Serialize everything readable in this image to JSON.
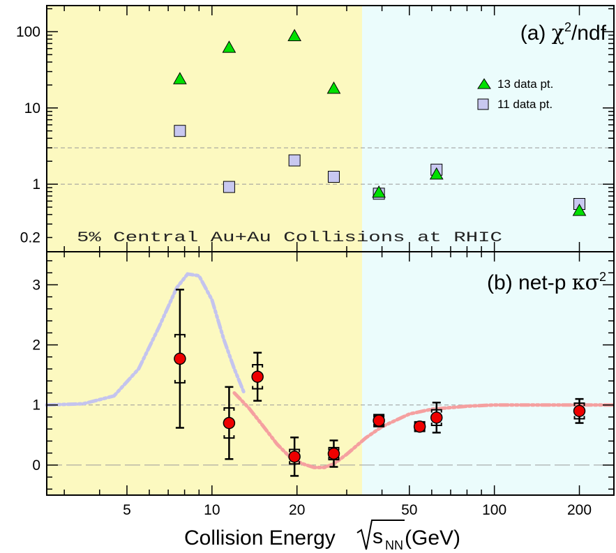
{
  "colors": {
    "low_energy_band": "#fcf9c0",
    "high_energy_band": "#ebfcfc",
    "triangle": "#00e000",
    "square": "#c8c8f0",
    "circle": "#ee0000",
    "peak_curve": "#c4c4ee",
    "dip_curve": "#f5a0a0",
    "reference_line": "#999999"
  },
  "chart_data": [
    {
      "panel": "a",
      "type": "scatter",
      "title_prefix": "(a) ",
      "title_chi": "χ",
      "title_sup": "2",
      "title_rest": "/ndf",
      "annotation": "5% Central Au+Au Collisions at RHIC",
      "yscale": "log",
      "ylim": [
        0.13,
        220
      ],
      "yticks": [
        0.2,
        1,
        10,
        100
      ],
      "ytick_labels": [
        "0.2",
        "1",
        "10",
        "100"
      ],
      "reference_lines_y": [
        1,
        3
      ],
      "legend_position": "top-right",
      "series": [
        {
          "name": "13 data pt.",
          "marker": "triangle",
          "x": [
            7.7,
            11.5,
            19.6,
            27,
            39,
            62.4,
            200
          ],
          "y": [
            24,
            62,
            88,
            18,
            0.78,
            1.35,
            0.45
          ]
        },
        {
          "name": "11 data pt.",
          "marker": "square",
          "x": [
            7.7,
            11.5,
            19.6,
            27,
            39,
            62.4,
            200
          ],
          "y": [
            5,
            0.92,
            2.05,
            1.25,
            0.75,
            1.55,
            0.55
          ]
        }
      ]
    },
    {
      "panel": "b",
      "type": "scatter",
      "title_prefix": "(b) net-p ",
      "title_kappa": "κσ",
      "title_sup": "2",
      "ylim": [
        -0.5,
        3.55
      ],
      "yticks": [
        0,
        1,
        2,
        3
      ],
      "ytick_labels": [
        "0",
        "1",
        "2",
        "3"
      ],
      "reference_lines_y": [
        0,
        1
      ],
      "series": [
        {
          "marker": "circle",
          "x": [
            7.7,
            11.5,
            14.5,
            19.6,
            27,
            39,
            54.4,
            62.4,
            200
          ],
          "y": [
            1.77,
            0.7,
            1.47,
            0.14,
            0.19,
            0.74,
            0.64,
            0.79,
            0.9
          ],
          "stat_err": [
            1.15,
            0.6,
            0.4,
            0.32,
            0.22,
            0.09,
            0.05,
            0.25,
            0.2
          ],
          "sys_err": [
            0.4,
            0.25,
            0.2,
            0.12,
            0.1,
            0.1,
            0.08,
            0.13,
            0.13
          ]
        }
      ],
      "curves": [
        {
          "x": [
            2.6,
            3.5,
            4.5,
            5.5,
            6.5,
            7.5,
            8.2,
            9,
            10,
            11,
            12,
            13
          ],
          "y": [
            1.0,
            1.02,
            1.15,
            1.6,
            2.3,
            2.95,
            3.18,
            3.15,
            2.75,
            2.1,
            1.6,
            1.2
          ]
        },
        {
          "x": [
            12,
            13.5,
            15,
            17,
            19,
            21,
            23,
            25,
            27,
            30,
            35,
            40,
            50,
            60,
            80,
            100,
            140,
            200,
            265
          ],
          "y": [
            1.2,
            0.95,
            0.68,
            0.35,
            0.12,
            0.02,
            -0.04,
            -0.04,
            0.02,
            0.18,
            0.45,
            0.64,
            0.85,
            0.93,
            0.98,
            1.0,
            1.0,
            1.0,
            1.0
          ]
        }
      ]
    }
  ],
  "xaxis": {
    "label_main": "Collision Energy ",
    "label_s": "s",
    "label_sub": "NN",
    "label_unit": " (GeV)",
    "scale": "log",
    "xlim": [
      2.6,
      265
    ],
    "ticks": [
      5,
      10,
      20,
      50,
      100,
      200
    ],
    "tick_labels": [
      "5",
      "10",
      "20",
      "50",
      "100",
      "200"
    ],
    "band_boundary": 34
  }
}
